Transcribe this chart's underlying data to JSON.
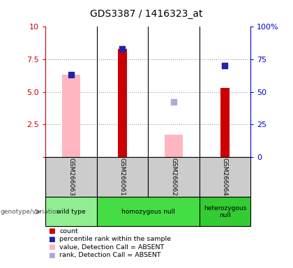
{
  "title": "GDS3387 / 1416323_at",
  "samples": [
    "GSM266063",
    "GSM266061",
    "GSM266062",
    "GSM266064"
  ],
  "ylim_left": [
    0,
    10
  ],
  "ylim_right": [
    0,
    100
  ],
  "yticks_left": [
    0,
    2.5,
    5.0,
    7.5,
    10
  ],
  "yticks_right": [
    0,
    25,
    50,
    75,
    100
  ],
  "red_bars": [
    null,
    8.3,
    null,
    5.3
  ],
  "blue_squares_left": [
    6.3,
    8.3,
    null,
    7.0
  ],
  "pink_bars": [
    6.3,
    null,
    1.7,
    null
  ],
  "lightblue_squares_left": [
    null,
    null,
    4.2,
    null
  ],
  "genotype_groups": [
    {
      "label": "wild type",
      "start": 0,
      "end": 1,
      "color": "#90EE90"
    },
    {
      "label": "homozygous null",
      "start": 1,
      "end": 3,
      "color": "#44DD44"
    },
    {
      "label": "heterozygous\nnull",
      "start": 3,
      "end": 4,
      "color": "#33CC33"
    }
  ],
  "red_color": "#CC0000",
  "blue_color": "#2222AA",
  "pink_color": "#FFB6C1",
  "lightblue_color": "#AAAADD",
  "left_axis_color": "#CC0000",
  "right_axis_color": "#0000CC",
  "grid_color": "#999999",
  "sample_box_color": "#CCCCCC"
}
